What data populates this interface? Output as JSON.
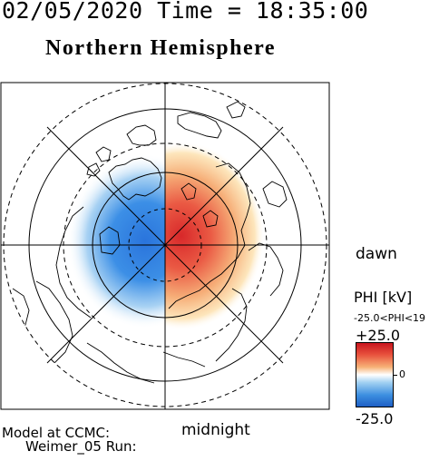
{
  "header": {
    "datetime": "02/05/2020 Time = 18:35:00",
    "title": "Northern Hemisphere"
  },
  "map": {
    "type": "polar-stereographic",
    "hemisphere": "north",
    "orientation_labels": {
      "right": "dawn",
      "bottom": "midnight"
    }
  },
  "colorbar": {
    "title": "PHI [kV]",
    "range_text": "-25.0<PHI<19",
    "max_label": "+25.0",
    "mid_label": "0",
    "min_label": "-25.0",
    "colors": {
      "positive": "#c8141e",
      "neutral": "#ffffff",
      "negative": "#1e5fc4"
    }
  },
  "footer": {
    "model_line1": "Model at CCMC:",
    "model_line2": "Weimer_05 Run:"
  }
}
